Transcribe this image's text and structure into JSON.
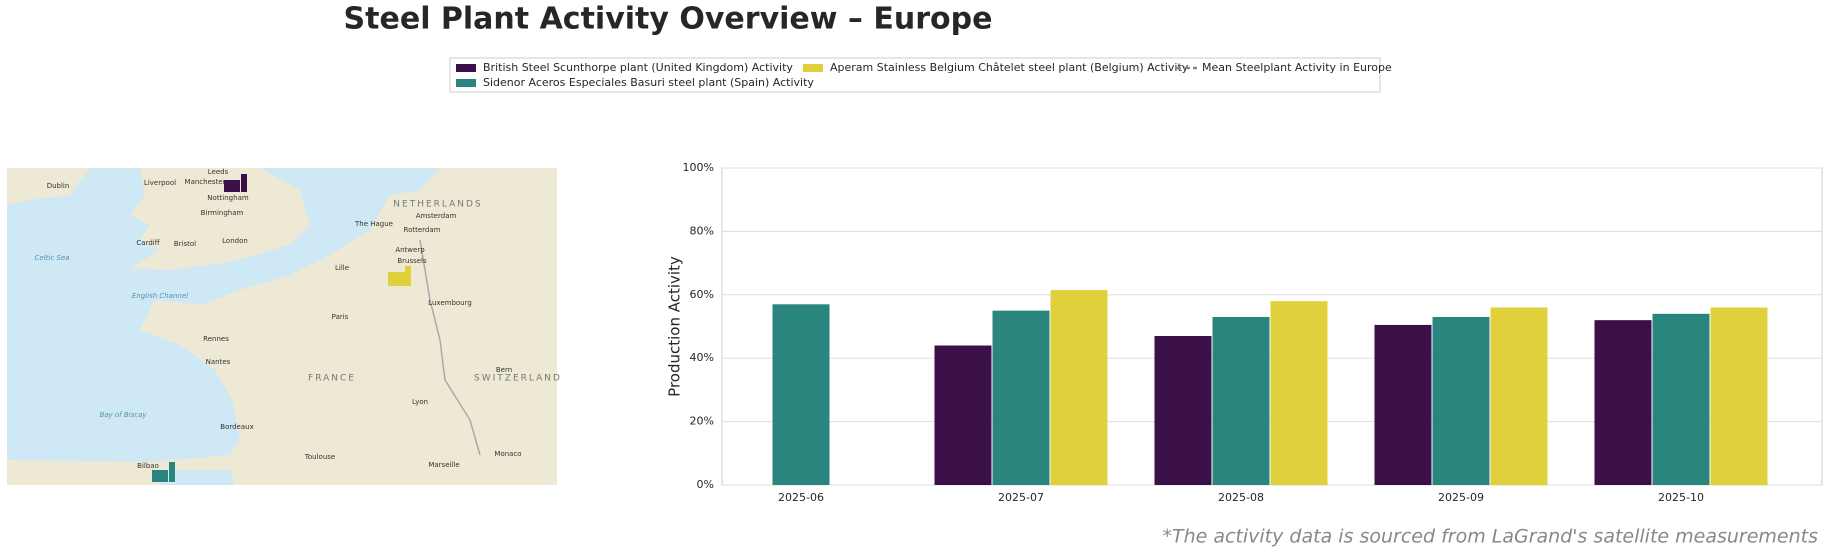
{
  "chart_data": {
    "type": "bar",
    "title": "Steel Plant Activity Overview – Europe",
    "y_label": "Production Activity",
    "footnote": "*The activity data is sourced from LaGrand's satellite measurements",
    "categories": [
      "2025-06",
      "2025-07",
      "2025-08",
      "2025-09",
      "2025-10"
    ],
    "series": [
      {
        "name": "British Steel Scunthorpe plant (United Kingdom) Activity",
        "color": "#3b0f47",
        "values": [
          null,
          44,
          47,
          50.5,
          52
        ]
      },
      {
        "name": "Sidenor Aceros Especiales Basuri steel plant (Spain) Activity",
        "color": "#2a857f",
        "values": [
          57,
          55,
          53,
          53,
          54
        ]
      },
      {
        "name": "Aperam Stainless Belgium Châtelet steel plant (Belgium) Activity",
        "color": "#e0d13c",
        "values": [
          null,
          61.5,
          58,
          56,
          56
        ]
      },
      {
        "name": "Mean Steelplant Activity in Europe",
        "color": "#888888",
        "style": "dashed",
        "values": [
          null,
          null,
          null,
          null,
          null
        ]
      }
    ],
    "ylim": [
      0,
      100
    ],
    "yticks": [
      {
        "value": 0,
        "label": "0%"
      },
      {
        "value": 20,
        "label": "20%"
      },
      {
        "value": 40,
        "label": "40%"
      },
      {
        "value": 60,
        "label": "60%"
      },
      {
        "value": 80,
        "label": "80%"
      },
      {
        "value": 100,
        "label": "100%"
      }
    ],
    "grid": true,
    "map_labels": [
      "Dublin",
      "Liverpool",
      "Manchester",
      "Leeds",
      "Nottingham",
      "Birmingham",
      "Cardiff",
      "Bristol",
      "London",
      "The Hague",
      "Amsterdam",
      "NETHERLANDS",
      "Rotterdam",
      "Antwerp",
      "Brussels",
      "Lille",
      "Luxembourg",
      "Paris",
      "Rennes",
      "Nantes",
      "FRANCE",
      "Lyon",
      "Bordeaux",
      "Toulouse",
      "Marseille",
      "Monaco",
      "Bilbao",
      "Bern",
      "SWITZERLAND",
      "Celtic Sea",
      "English Channel",
      "Bay of Biscay"
    ]
  }
}
